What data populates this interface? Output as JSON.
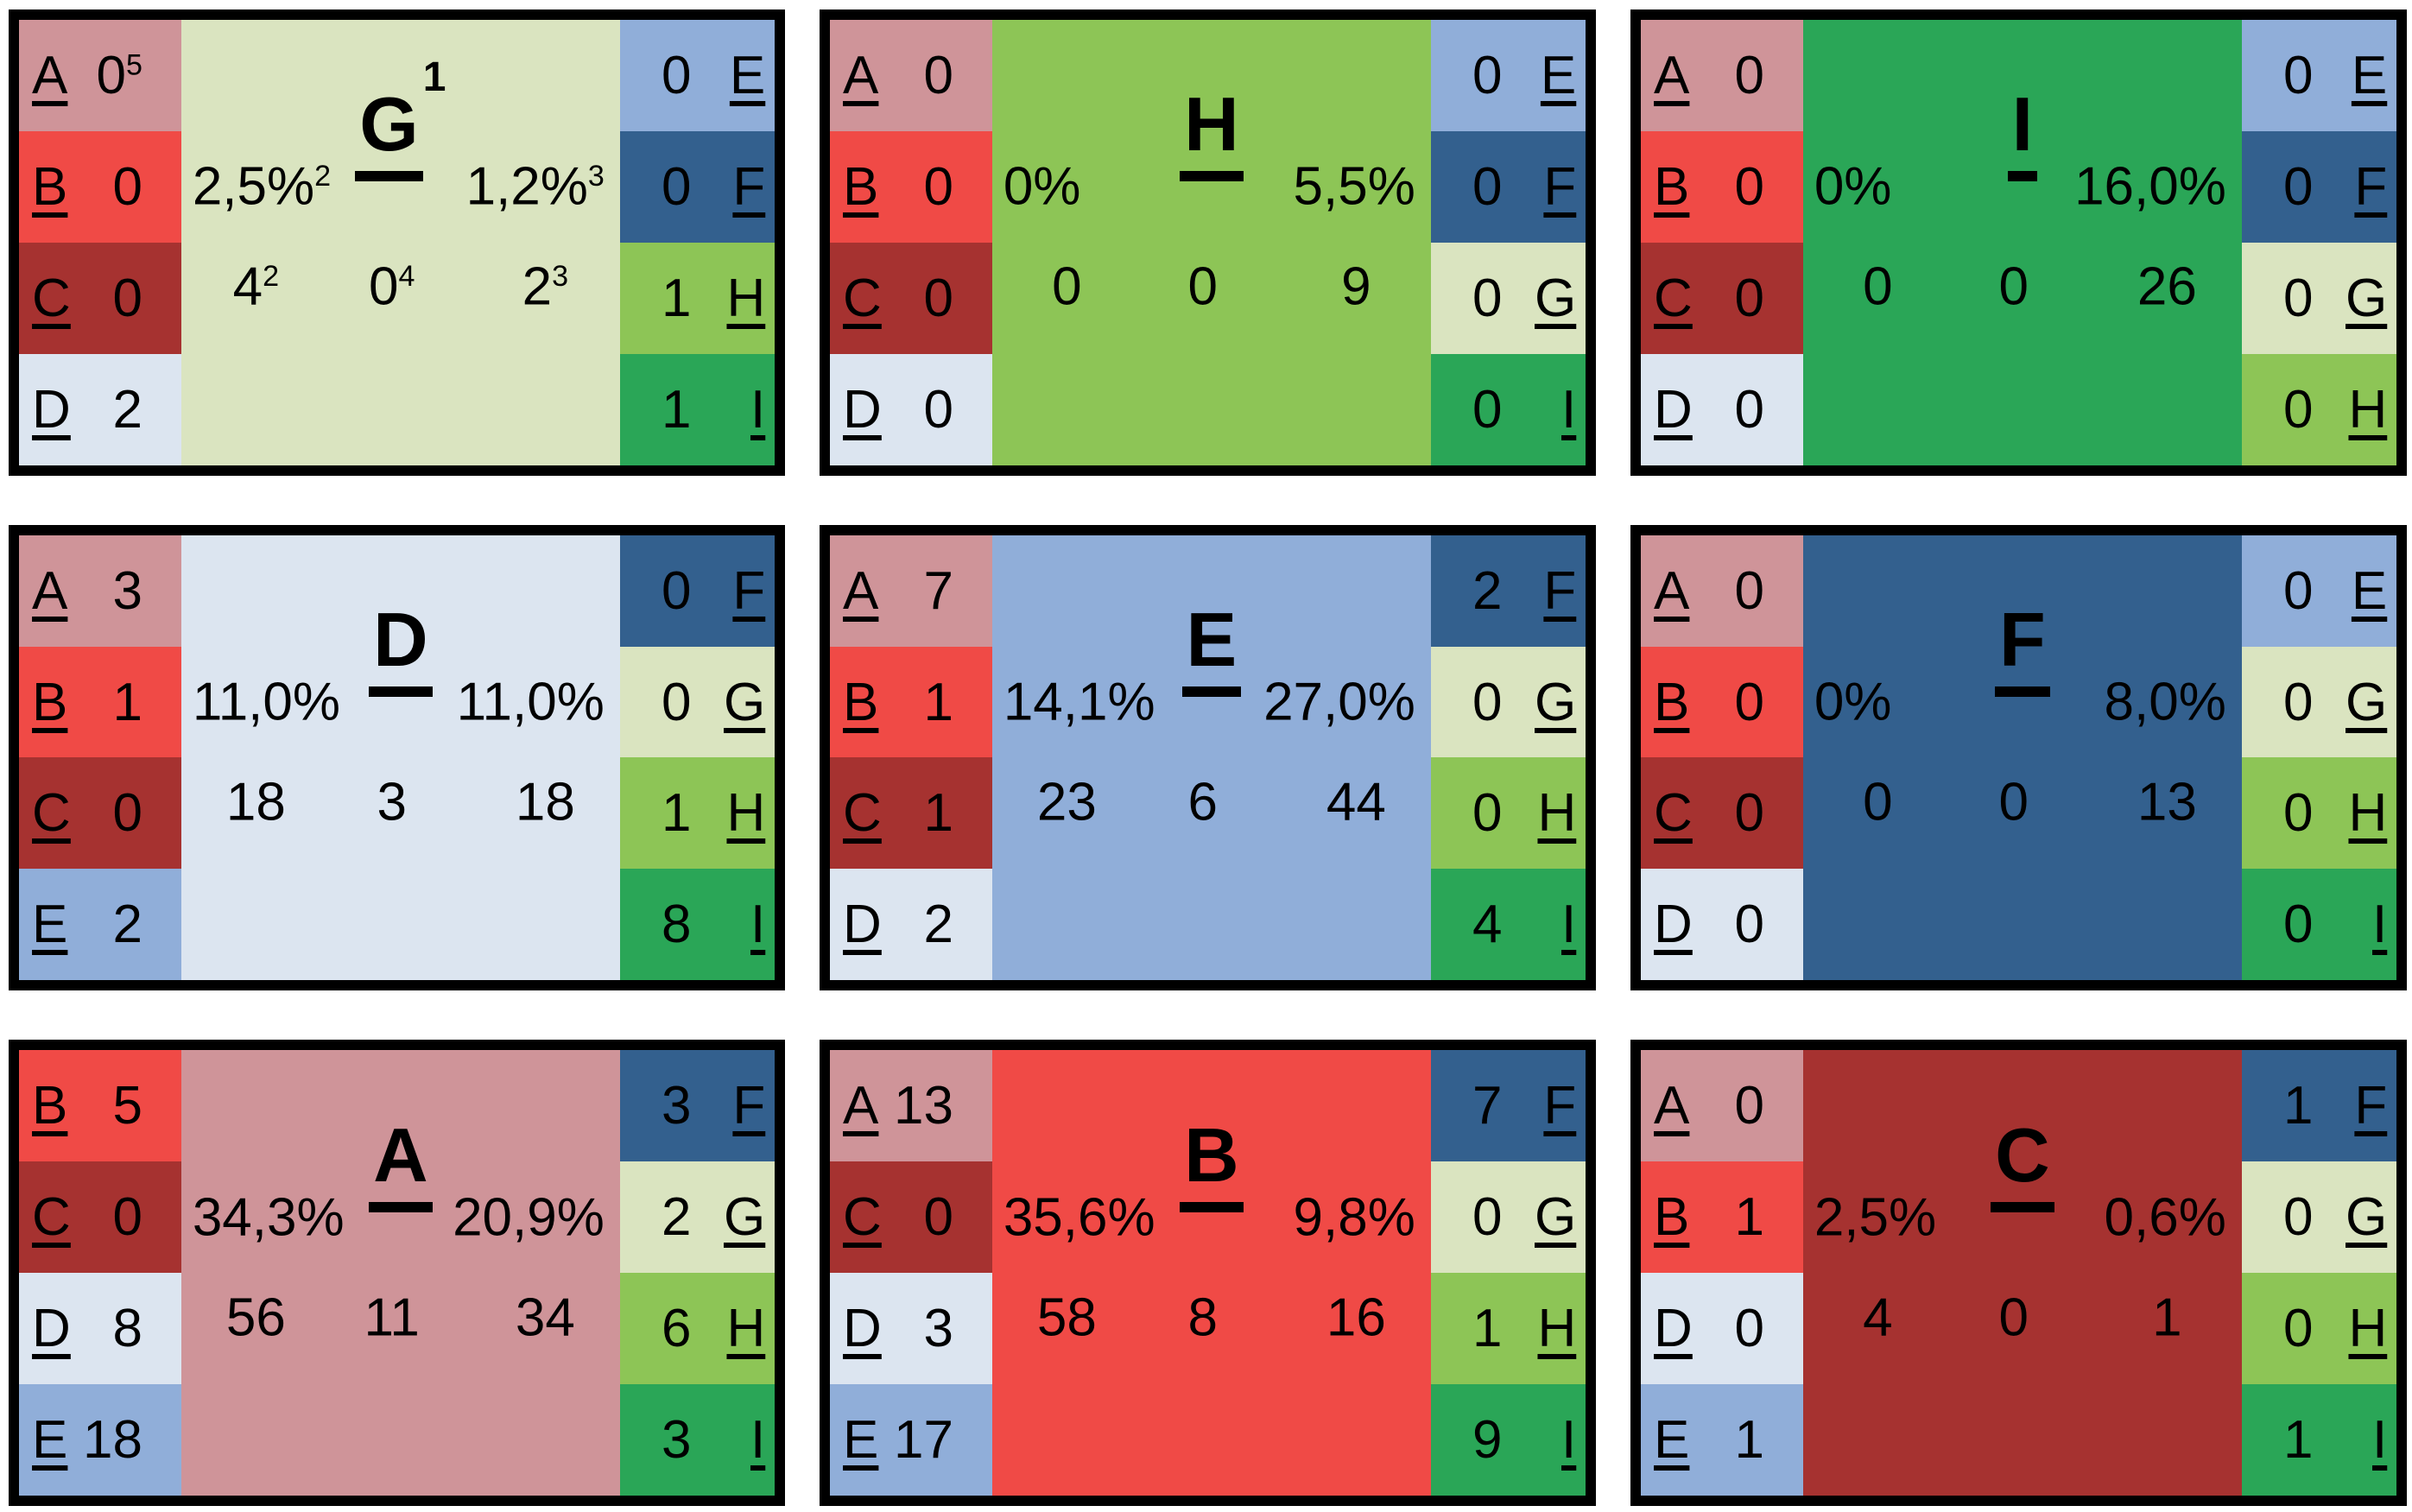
{
  "background": "#ffffff",
  "border_color": "#000000",
  "text_color": "#000000",
  "letter_colors": {
    "A": "#cf9499",
    "B": "#f04a46",
    "C": "#a63230",
    "D": "#dce5f0",
    "E": "#90aed9",
    "F": "#33608e",
    "G": "#dae4c0",
    "H": "#8dc556",
    "I": "#2aa657"
  },
  "panels": [
    {
      "title": "G",
      "title_sup": "1",
      "left": [
        {
          "letter": "A",
          "value": {
            "text": "0",
            "sup": "5"
          }
        },
        {
          "letter": "B",
          "value": {
            "text": "0"
          }
        },
        {
          "letter": "C",
          "value": {
            "text": "0"
          }
        },
        {
          "letter": "D",
          "value": {
            "text": "2"
          }
        }
      ],
      "right": [
        {
          "letter": "E",
          "value": {
            "text": "0"
          }
        },
        {
          "letter": "F",
          "value": {
            "text": "0"
          }
        },
        {
          "letter": "H",
          "value": {
            "text": "1"
          }
        },
        {
          "letter": "I",
          "value": {
            "text": "1"
          }
        }
      ],
      "pct_left": {
        "text": "2,5%",
        "sup": "2"
      },
      "pct_right": {
        "text": "1,2%",
        "sup": "3"
      },
      "numbers": [
        {
          "text": "4",
          "sup": "2"
        },
        {
          "text": "0",
          "sup": "4"
        },
        {
          "text": "2",
          "sup": "3"
        }
      ]
    },
    {
      "title": "H",
      "title_sup": "",
      "left": [
        {
          "letter": "A",
          "value": {
            "text": "0"
          }
        },
        {
          "letter": "B",
          "value": {
            "text": "0"
          }
        },
        {
          "letter": "C",
          "value": {
            "text": "0"
          }
        },
        {
          "letter": "D",
          "value": {
            "text": "0"
          }
        }
      ],
      "right": [
        {
          "letter": "E",
          "value": {
            "text": "0"
          }
        },
        {
          "letter": "F",
          "value": {
            "text": "0"
          }
        },
        {
          "letter": "G",
          "value": {
            "text": "0"
          }
        },
        {
          "letter": "I",
          "value": {
            "text": "0"
          }
        }
      ],
      "pct_left": {
        "text": "0%"
      },
      "pct_right": {
        "text": "5,5%"
      },
      "numbers": [
        {
          "text": "0"
        },
        {
          "text": "0"
        },
        {
          "text": "9"
        }
      ]
    },
    {
      "title": "I",
      "title_sup": "",
      "left": [
        {
          "letter": "A",
          "value": {
            "text": "0"
          }
        },
        {
          "letter": "B",
          "value": {
            "text": "0"
          }
        },
        {
          "letter": "C",
          "value": {
            "text": "0"
          }
        },
        {
          "letter": "D",
          "value": {
            "text": "0"
          }
        }
      ],
      "right": [
        {
          "letter": "E",
          "value": {
            "text": "0"
          }
        },
        {
          "letter": "F",
          "value": {
            "text": "0"
          }
        },
        {
          "letter": "G",
          "value": {
            "text": "0"
          }
        },
        {
          "letter": "H",
          "value": {
            "text": "0"
          }
        }
      ],
      "pct_left": {
        "text": "0%"
      },
      "pct_right": {
        "text": "16,0%"
      },
      "numbers": [
        {
          "text": "0"
        },
        {
          "text": "0"
        },
        {
          "text": "26"
        }
      ]
    },
    {
      "title": "D",
      "title_sup": "",
      "left": [
        {
          "letter": "A",
          "value": {
            "text": "3"
          }
        },
        {
          "letter": "B",
          "value": {
            "text": "1"
          }
        },
        {
          "letter": "C",
          "value": {
            "text": "0"
          }
        },
        {
          "letter": "E",
          "value": {
            "text": "2"
          }
        }
      ],
      "right": [
        {
          "letter": "F",
          "value": {
            "text": "0"
          }
        },
        {
          "letter": "G",
          "value": {
            "text": "0"
          }
        },
        {
          "letter": "H",
          "value": {
            "text": "1"
          }
        },
        {
          "letter": "I",
          "value": {
            "text": "8"
          }
        }
      ],
      "pct_left": {
        "text": "11,0%"
      },
      "pct_right": {
        "text": "11,0%"
      },
      "numbers": [
        {
          "text": "18"
        },
        {
          "text": "3"
        },
        {
          "text": "18"
        }
      ]
    },
    {
      "title": "E",
      "title_sup": "",
      "left": [
        {
          "letter": "A",
          "value": {
            "text": "7"
          }
        },
        {
          "letter": "B",
          "value": {
            "text": "1"
          }
        },
        {
          "letter": "C",
          "value": {
            "text": "1"
          }
        },
        {
          "letter": "D",
          "value": {
            "text": "2"
          }
        }
      ],
      "right": [
        {
          "letter": "F",
          "value": {
            "text": "2"
          }
        },
        {
          "letter": "G",
          "value": {
            "text": "0"
          }
        },
        {
          "letter": "H",
          "value": {
            "text": "0"
          }
        },
        {
          "letter": "I",
          "value": {
            "text": "4"
          }
        }
      ],
      "pct_left": {
        "text": "14,1%"
      },
      "pct_right": {
        "text": "27,0%"
      },
      "numbers": [
        {
          "text": "23"
        },
        {
          "text": "6"
        },
        {
          "text": "44"
        }
      ]
    },
    {
      "title": "F",
      "title_sup": "",
      "left": [
        {
          "letter": "A",
          "value": {
            "text": "0"
          }
        },
        {
          "letter": "B",
          "value": {
            "text": "0"
          }
        },
        {
          "letter": "C",
          "value": {
            "text": "0"
          }
        },
        {
          "letter": "D",
          "value": {
            "text": "0"
          }
        }
      ],
      "right": [
        {
          "letter": "E",
          "value": {
            "text": "0"
          }
        },
        {
          "letter": "G",
          "value": {
            "text": "0"
          }
        },
        {
          "letter": "H",
          "value": {
            "text": "0"
          }
        },
        {
          "letter": "I",
          "value": {
            "text": "0"
          }
        }
      ],
      "pct_left": {
        "text": "0%"
      },
      "pct_right": {
        "text": "8,0%"
      },
      "numbers": [
        {
          "text": "0"
        },
        {
          "text": "0"
        },
        {
          "text": "13"
        }
      ]
    },
    {
      "title": "A",
      "title_sup": "",
      "left": [
        {
          "letter": "B",
          "value": {
            "text": "5"
          }
        },
        {
          "letter": "C",
          "value": {
            "text": "0"
          }
        },
        {
          "letter": "D",
          "value": {
            "text": "8"
          }
        },
        {
          "letter": "E",
          "value": {
            "text": "18"
          }
        }
      ],
      "right": [
        {
          "letter": "F",
          "value": {
            "text": "3"
          }
        },
        {
          "letter": "G",
          "value": {
            "text": "2"
          }
        },
        {
          "letter": "H",
          "value": {
            "text": "6"
          }
        },
        {
          "letter": "I",
          "value": {
            "text": "3"
          }
        }
      ],
      "pct_left": {
        "text": "34,3%"
      },
      "pct_right": {
        "text": "20,9%"
      },
      "numbers": [
        {
          "text": "56"
        },
        {
          "text": "11"
        },
        {
          "text": "34"
        }
      ]
    },
    {
      "title": "B",
      "title_sup": "",
      "left": [
        {
          "letter": "A",
          "value": {
            "text": "13"
          }
        },
        {
          "letter": "C",
          "value": {
            "text": "0"
          }
        },
        {
          "letter": "D",
          "value": {
            "text": "3"
          }
        },
        {
          "letter": "E",
          "value": {
            "text": "17"
          }
        }
      ],
      "right": [
        {
          "letter": "F",
          "value": {
            "text": "7"
          }
        },
        {
          "letter": "G",
          "value": {
            "text": "0"
          }
        },
        {
          "letter": "H",
          "value": {
            "text": "1"
          }
        },
        {
          "letter": "I",
          "value": {
            "text": "9"
          }
        }
      ],
      "pct_left": {
        "text": "35,6%"
      },
      "pct_right": {
        "text": "9,8%"
      },
      "numbers": [
        {
          "text": "58"
        },
        {
          "text": "8"
        },
        {
          "text": "16"
        }
      ]
    },
    {
      "title": "C",
      "title_sup": "",
      "left": [
        {
          "letter": "A",
          "value": {
            "text": "0"
          }
        },
        {
          "letter": "B",
          "value": {
            "text": "1"
          }
        },
        {
          "letter": "D",
          "value": {
            "text": "0"
          }
        },
        {
          "letter": "E",
          "value": {
            "text": "1"
          }
        }
      ],
      "right": [
        {
          "letter": "F",
          "value": {
            "text": "1"
          }
        },
        {
          "letter": "G",
          "value": {
            "text": "0"
          }
        },
        {
          "letter": "H",
          "value": {
            "text": "0"
          }
        },
        {
          "letter": "I",
          "value": {
            "text": "1"
          }
        }
      ],
      "pct_left": {
        "text": "2,5%"
      },
      "pct_right": {
        "text": "0,6%"
      },
      "numbers": [
        {
          "text": "4"
        },
        {
          "text": "0"
        },
        {
          "text": "1"
        }
      ]
    }
  ]
}
